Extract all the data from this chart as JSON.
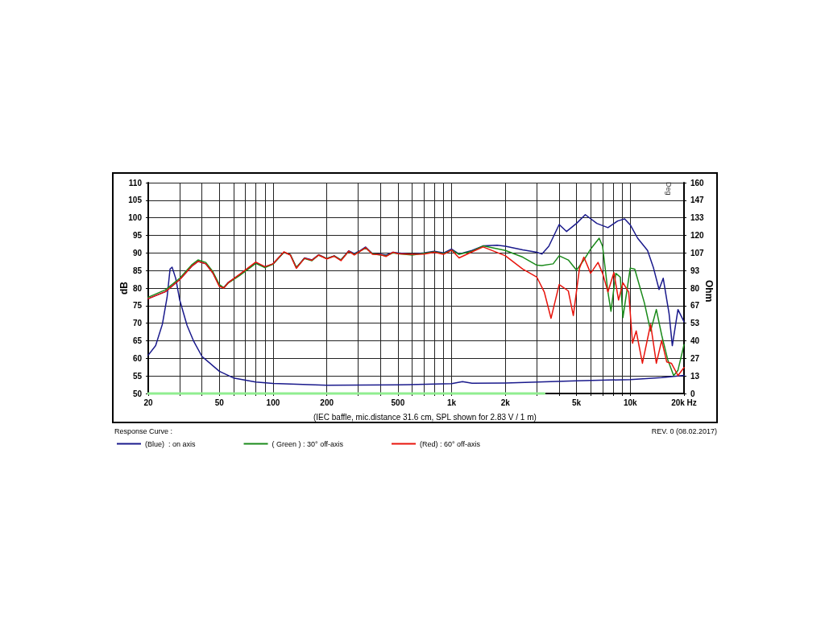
{
  "chart_data": {
    "type": "line",
    "xlabel": "(IEC baffle, mic.distance 31.6 cm, SPL shown for 2.83 V / 1 m)",
    "ylabel": "dB",
    "y2label": "Ohm",
    "legend_title": "Response Curve :",
    "annotations": [
      "REV. 0 (08.02.2017)",
      "Deg"
    ],
    "log": "x",
    "grid": true,
    "legend": "bottom left",
    "marker": "none",
    "line_style": "solid",
    "xlim": [
      20,
      20000
    ],
    "xticks": [
      20,
      {
        "value": 30,
        "label": null
      },
      {
        "value": 40,
        "label": null
      },
      50,
      {
        "value": 60,
        "label": null
      },
      {
        "value": 70,
        "label": null
      },
      {
        "value": 80,
        "label": null
      },
      {
        "value": 90,
        "label": null
      },
      100,
      200,
      {
        "value": 300,
        "label": null
      },
      {
        "value": 400,
        "label": null
      },
      500,
      {
        "value": 600,
        "label": null
      },
      {
        "value": 700,
        "label": null
      },
      {
        "value": 800,
        "label": null
      },
      {
        "value": 900,
        "label": null
      },
      {
        "value": 1000,
        "label": "1k"
      },
      {
        "value": 2000,
        "label": "2k"
      },
      {
        "value": 3000,
        "label": null
      },
      {
        "value": 4000,
        "label": null
      },
      {
        "value": 5000,
        "label": "5k"
      },
      {
        "value": 6000,
        "label": null
      },
      {
        "value": 7000,
        "label": null
      },
      {
        "value": 8000,
        "label": null
      },
      {
        "value": 9000,
        "label": null
      },
      {
        "value": 10000,
        "label": "10k"
      },
      {
        "value": 20000,
        "label": "20k Hz"
      }
    ],
    "ylim": [
      50,
      110
    ],
    "yticks": [
      50,
      55,
      60,
      65,
      70,
      75,
      80,
      85,
      90,
      95,
      100,
      105,
      110
    ],
    "y2lim": [
      0,
      160
    ],
    "y2ticks": [
      0,
      {
        "value": 13.33,
        "label": "13"
      },
      {
        "value": 26.67,
        "label": "27"
      },
      40,
      {
        "value": 53.33,
        "label": "53"
      },
      {
        "value": 66.67,
        "label": "67"
      },
      80,
      {
        "value": 93.33,
        "label": "93"
      },
      {
        "value": 106.67,
        "label": "107"
      },
      120,
      {
        "value": 133.33,
        "label": "133"
      },
      {
        "value": 146.67,
        "label": "147"
      },
      160
    ],
    "series": [
      {
        "name": "(Blue)  : on axis",
        "color": "#1a1a8c",
        "x": [
          20,
          25,
          30,
          35,
          38,
          42,
          46,
          50,
          53,
          56,
          65,
          80,
          90,
          100,
          115,
          125,
          135,
          150,
          165,
          180,
          200,
          220,
          240,
          265,
          285,
          310,
          330,
          360,
          400,
          430,
          470,
          500,
          600,
          700,
          800,
          900,
          1000,
          1100,
          1300,
          1500,
          1800,
          2000,
          2500,
          3000,
          3200,
          3500,
          4000,
          4400,
          5000,
          5600,
          6500,
          7500,
          8500,
          9300,
          10000,
          11000,
          12500,
          13500,
          14500,
          15300,
          16500,
          17200,
          18500,
          20000
        ],
        "values": [
          77,
          79,
          82.4,
          86.2,
          87.6,
          86.9,
          84.3,
          80.7,
          80.1,
          81.6,
          83.8,
          87.2,
          86,
          86.9,
          90.2,
          89.5,
          85.8,
          88.6,
          88,
          89.5,
          88.4,
          89.2,
          88,
          90.6,
          89.8,
          90.8,
          91.7,
          89.8,
          89.6,
          89.4,
          90.2,
          90,
          89.6,
          90,
          90.5,
          90,
          91.1,
          89.7,
          90.7,
          92,
          92.2,
          91.9,
          90.9,
          90.2,
          89.7,
          91.9,
          98.1,
          96.1,
          98.4,
          100.9,
          98.4,
          97.2,
          99.1,
          99.7,
          98,
          94.2,
          90.7,
          85.7,
          79.6,
          82.8,
          72.7,
          63.6,
          73.9,
          70.4
        ]
      },
      {
        "name": "( Green ) : 30° off-axis",
        "color": "#1a8a1a",
        "x": [
          20,
          25,
          30,
          35,
          38,
          42,
          46,
          50,
          53,
          56,
          65,
          80,
          90,
          100,
          115,
          125,
          135,
          150,
          165,
          180,
          200,
          220,
          240,
          265,
          285,
          310,
          330,
          360,
          400,
          430,
          470,
          500,
          600,
          700,
          800,
          900,
          1000,
          1100,
          1300,
          1500,
          2000,
          2500,
          3000,
          3200,
          3700,
          4000,
          4500,
          5000,
          5500,
          6000,
          6700,
          7000,
          7500,
          7800,
          8300,
          8800,
          9100,
          10000,
          10600,
          12000,
          13000,
          14000,
          15000,
          16200,
          17500,
          18500,
          20000
        ],
        "values": [
          77.4,
          79.5,
          82.8,
          86.6,
          88,
          87.3,
          84.7,
          81,
          80.1,
          81.4,
          83.6,
          87,
          85.8,
          86.8,
          90.2,
          89.5,
          85.9,
          88.4,
          87.8,
          89.4,
          88.4,
          89.1,
          88,
          90.4,
          89.6,
          90.6,
          91.4,
          89.8,
          89.4,
          89.2,
          90,
          89.8,
          89.4,
          89.9,
          90.3,
          89.8,
          90.8,
          89.6,
          90.5,
          92,
          90.7,
          88.8,
          86.5,
          86.4,
          86.9,
          89.2,
          88,
          85.1,
          88,
          91.1,
          94.2,
          91.9,
          78.9,
          73.4,
          84.2,
          83.1,
          71.6,
          85.7,
          85.4,
          75.8,
          67.8,
          73.9,
          66.6,
          59.7,
          55.1,
          56.6,
          63.9
        ]
      },
      {
        "name": "(Red) : 60° off-axis",
        "color": "#e8140c",
        "x": [
          20,
          25,
          30,
          35,
          38,
          42,
          46,
          50,
          53,
          56,
          65,
          80,
          90,
          100,
          115,
          125,
          135,
          150,
          165,
          180,
          200,
          220,
          240,
          265,
          285,
          310,
          330,
          360,
          400,
          430,
          470,
          500,
          600,
          700,
          800,
          900,
          1000,
          1100,
          1300,
          1500,
          2000,
          2500,
          3000,
          3300,
          3600,
          4000,
          4500,
          4800,
          5200,
          5500,
          6000,
          6600,
          7000,
          7500,
          8100,
          8600,
          9100,
          9800,
          10300,
          10800,
          11700,
          13000,
          14000,
          15000,
          16000,
          17000,
          18500,
          20000
        ],
        "values": [
          77,
          79,
          82.4,
          86.2,
          87.6,
          86.9,
          84.3,
          80.5,
          80,
          81.5,
          83.9,
          87.4,
          86.1,
          86.9,
          90.3,
          89.4,
          85.6,
          88.5,
          87.9,
          89.4,
          88.3,
          89.1,
          87.8,
          90.5,
          89.4,
          90.6,
          91.5,
          89.6,
          89.5,
          89,
          90.2,
          89.8,
          89.6,
          89.7,
          90.2,
          89.6,
          90.8,
          88.6,
          90.3,
          91.7,
          89.2,
          85.4,
          83.1,
          78.9,
          71.4,
          81,
          79.2,
          72.2,
          85.7,
          88.8,
          84.2,
          87.3,
          84.2,
          78.9,
          84.4,
          76.6,
          81.5,
          78.9,
          64.3,
          67.8,
          58.6,
          69.7,
          58.6,
          65.1,
          59,
          58.6,
          55.1,
          57.4
        ]
      },
      {
        "color": "#1a1a8c",
        "axis": "y2",
        "x": [
          20,
          22,
          24,
          25.5,
          26.5,
          27.2,
          28.5,
          30,
          33,
          36,
          40,
          50,
          60,
          80,
          100,
          200,
          500,
          1000,
          1150,
          1300,
          2000,
          5000,
          10000,
          15000,
          20000
        ],
        "values": [
          29.1,
          36.3,
          52.6,
          73,
          94.5,
          95.9,
          87.4,
          71,
          51.6,
          39.4,
          28.1,
          16.9,
          11.8,
          8.7,
          7.7,
          6.3,
          6.5,
          7.5,
          9,
          7.8,
          8,
          9.6,
          10.6,
          12,
          13.7
        ]
      },
      {
        "color": "#90ee90",
        "x": [
          20,
          3300
        ],
        "values": [
          50,
          50
        ]
      }
    ]
  }
}
